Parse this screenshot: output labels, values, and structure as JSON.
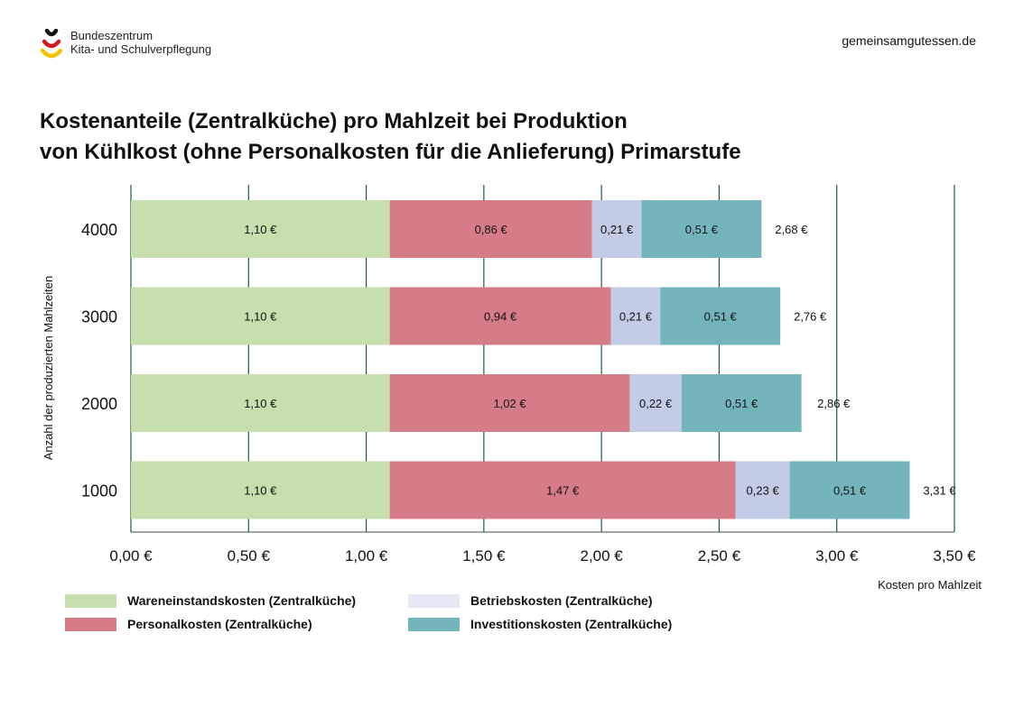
{
  "header": {
    "logo_line1": "Bundeszentrum",
    "logo_line2": "Kita- und Schulverpflegung",
    "website": "gemeinsamgutessen.de"
  },
  "title_line1": "Kostenanteile (Zentralküche) pro Mahlzeit bei Produktion",
  "title_line2": "von Kühlkost (ohne Personalkosten für die Anlieferung) Primarstufe",
  "chart_data": {
    "type": "bar",
    "orientation": "horizontal",
    "stacked": true,
    "categories": [
      "4000",
      "3000",
      "2000",
      "1000"
    ],
    "series": [
      {
        "name": "Wareneinstandskosten (Zentralküche)",
        "color": "#c6dfad",
        "values": [
          1.1,
          1.1,
          1.1,
          1.1
        ],
        "labels": [
          "1,10 €",
          "1,10 €",
          "1,10 €",
          "1,10 €"
        ]
      },
      {
        "name": "Personalkosten (Zentralküche)",
        "color": "#d67b88",
        "values": [
          0.86,
          0.94,
          1.02,
          1.47
        ],
        "labels": [
          "0,86 €",
          "0,94 €",
          "1,02 €",
          "1,47 €"
        ]
      },
      {
        "name": "Betriebskosten (Zentralküche)",
        "color": "#c2cce6",
        "values": [
          0.21,
          0.21,
          0.22,
          0.23
        ],
        "labels": [
          "0,21 €",
          "0,21 €",
          "0,22 €",
          "0,23 €"
        ]
      },
      {
        "name": "Investitionskosten (Zentralküche)",
        "color": "#73b5bb",
        "values": [
          0.51,
          0.51,
          0.51,
          0.51
        ],
        "labels": [
          "0,51 €",
          "0,51 €",
          "0,51 €",
          "0,51 €"
        ]
      }
    ],
    "totals": [
      2.68,
      2.76,
      2.86,
      3.31
    ],
    "total_labels": [
      "2,68 €",
      "2,76 €",
      "2,86 €",
      "3,31 €"
    ],
    "xlim": [
      0,
      3.5
    ],
    "xticks": [
      0,
      0.5,
      1,
      1.5,
      2,
      2.5,
      3,
      3.5
    ],
    "xtick_labels": [
      "0,00 €",
      "0,50 €",
      "1,00 €",
      "1,50 €",
      "2,00 €",
      "2,50 €",
      "3,00 €",
      "3,50 €"
    ],
    "xlabel": "Kosten pro Mahlzeit",
    "ylabel": "Anzahl der produzierten Mahlzeiten",
    "grid": true,
    "legend_position": "bottom-left"
  },
  "legend": [
    {
      "label": "Wareneinstandskosten (Zentralküche)",
      "color": "#c6dfad"
    },
    {
      "label": "Betriebskosten (Zentralküche)",
      "color": "#e3e8f4"
    },
    {
      "label": "Personalkosten (Zentralküche)",
      "color": "#d67b88"
    },
    {
      "label": "Investitionskosten (Zentralküche)",
      "color": "#73b5bb"
    }
  ]
}
